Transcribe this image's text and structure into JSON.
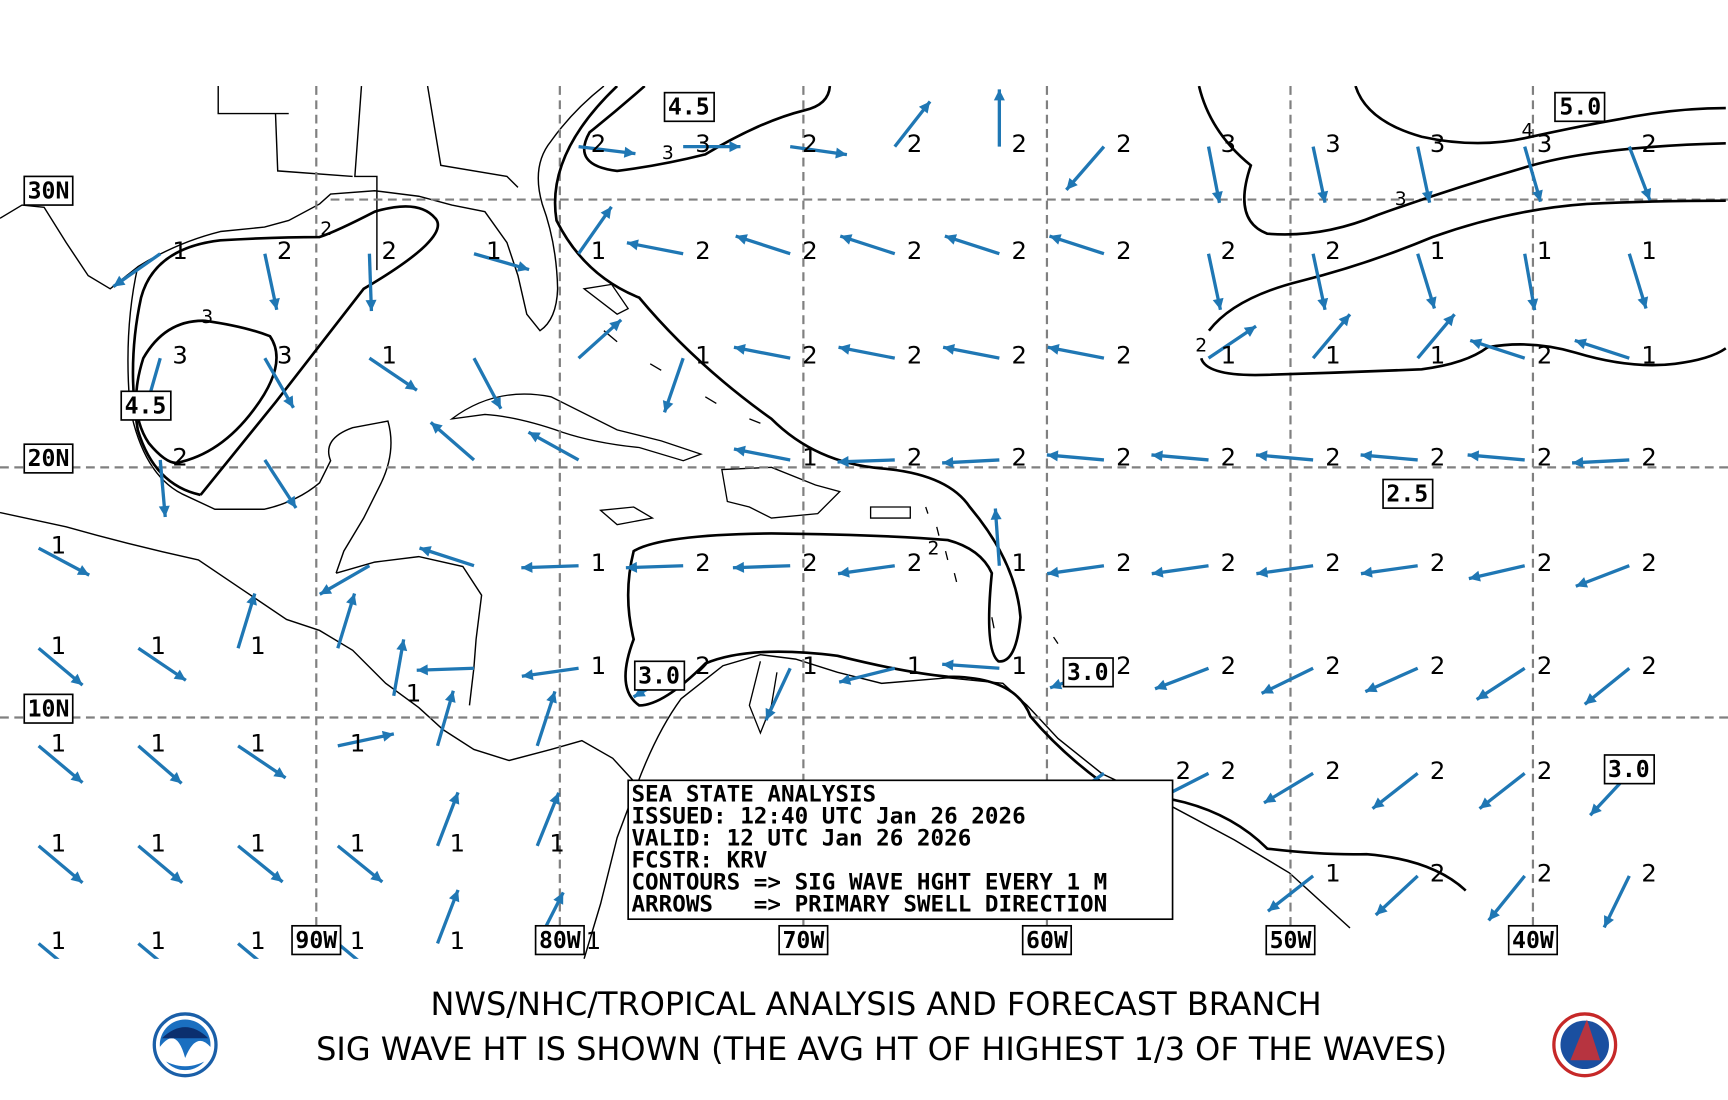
{
  "map": {
    "title": "SEA STATE ANALYSIS",
    "colors": {
      "arrow": "#1f77b4",
      "contour": "#000000",
      "grid": "#808080"
    },
    "lat_labels": [
      "30N",
      "20N",
      "10N"
    ],
    "lon_labels": [
      "90W",
      "80W",
      "70W",
      "60W",
      "50W",
      "40W"
    ],
    "contour_value_labels": [
      "3",
      "2",
      "3",
      "3",
      "4",
      "2",
      "2"
    ],
    "boxed_labels": [
      "4.5",
      "5.0",
      "4.5",
      "2.5",
      "3.0",
      "3.0",
      "3.0"
    ],
    "info_box": {
      "line1": "SEA STATE ANALYSIS",
      "line2": "ISSUED: 12:40 UTC Jan 26 2026",
      "line3": "VALID: 12 UTC Jan 26 2026",
      "line4": "FCSTR: KRV",
      "line5": "CONTOURS => SIG WAVE HGHT EVERY 1 M",
      "line6": "ARROWS   => PRIMARY SWELL DIRECTION"
    },
    "legend": {
      "contours": "significant wave height every 1 m",
      "arrows": "primary swell direction"
    }
  },
  "grid_points": [
    {
      "lat": 32.1,
      "points": [
        {
          "lon": -78.4,
          "v": "2",
          "dir": 97
        },
        {
          "lon": -74.1,
          "v": "3",
          "dir": 90
        },
        {
          "lon": -69.7,
          "v": "2",
          "dir": 98
        },
        {
          "lon": -65.4,
          "v": "2",
          "dir": 38
        },
        {
          "lon": -61.1,
          "v": "2",
          "dir": 0
        },
        {
          "lon": -56.8,
          "v": "2",
          "dir": 221
        },
        {
          "lon": -52.5,
          "v": "3",
          "dir": 169
        },
        {
          "lon": -48.2,
          "v": "3",
          "dir": 168
        },
        {
          "lon": -43.9,
          "v": "3",
          "dir": 168
        },
        {
          "lon": -39.5,
          "v": "3",
          "dir": 164
        },
        {
          "lon": -35.2,
          "v": "2",
          "dir": 159
        }
      ]
    },
    {
      "lat": 28.1,
      "points": [
        {
          "lon": -95.6,
          "v": "1",
          "dir": 235
        },
        {
          "lon": -91.3,
          "v": "2",
          "dir": 168
        },
        {
          "lon": -87.0,
          "v": "2",
          "dir": 178
        },
        {
          "lon": -82.7,
          "v": "1",
          "dir": 106
        },
        {
          "lon": -78.4,
          "v": "1",
          "dir": 35
        },
        {
          "lon": -74.1,
          "v": "2",
          "dir": 281
        },
        {
          "lon": -69.7,
          "v": "2",
          "dir": 288
        },
        {
          "lon": -65.4,
          "v": "2",
          "dir": 288
        },
        {
          "lon": -61.1,
          "v": "2",
          "dir": 288
        },
        {
          "lon": -56.8,
          "v": "2",
          "dir": 288
        },
        {
          "lon": -52.5,
          "v": "2",
          "dir": 168
        },
        {
          "lon": -48.2,
          "v": "2",
          "dir": 168
        },
        {
          "lon": -43.9,
          "v": "1",
          "dir": 163
        },
        {
          "lon": -39.5,
          "v": "1",
          "dir": 170
        },
        {
          "lon": -35.2,
          "v": "1",
          "dir": 163
        }
      ]
    },
    {
      "lat": 24.2,
      "points": [
        {
          "lon": -95.6,
          "v": "3",
          "dir": 196
        },
        {
          "lon": -91.3,
          "v": "3",
          "dir": 150
        },
        {
          "lon": -87.0,
          "v": "1",
          "dir": 124
        },
        {
          "lon": -82.7,
          "v": "",
          "dir": 152
        },
        {
          "lon": -78.4,
          "v": "",
          "dir": 48
        },
        {
          "lon": -74.1,
          "v": "1",
          "dir": 199
        },
        {
          "lon": -69.7,
          "v": "2",
          "dir": 281
        },
        {
          "lon": -65.4,
          "v": "2",
          "dir": 281
        },
        {
          "lon": -61.1,
          "v": "2",
          "dir": 281
        },
        {
          "lon": -56.8,
          "v": "2",
          "dir": 281
        },
        {
          "lon": -52.5,
          "v": "1",
          "dir": 56
        },
        {
          "lon": -48.2,
          "v": "1",
          "dir": 40
        },
        {
          "lon": -43.9,
          "v": "1",
          "dir": 40
        },
        {
          "lon": -39.5,
          "v": "2",
          "dir": 288
        },
        {
          "lon": -35.2,
          "v": "1",
          "dir": 288
        }
      ]
    },
    {
      "lat": 20.4,
      "points": [
        {
          "lon": -95.6,
          "v": "2",
          "dir": 175
        },
        {
          "lon": -91.3,
          "v": "",
          "dir": 147
        },
        {
          "lon": -82.7,
          "v": "",
          "dir": 311
        },
        {
          "lon": -78.4,
          "v": "",
          "dir": 299
        },
        {
          "lon": -69.7,
          "v": "1",
          "dir": 281
        },
        {
          "lon": -65.4,
          "v": "2",
          "dir": 268
        },
        {
          "lon": -61.1,
          "v": "2",
          "dir": 267
        },
        {
          "lon": -56.8,
          "v": "2",
          "dir": 275
        },
        {
          "lon": -52.5,
          "v": "2",
          "dir": 275
        },
        {
          "lon": -48.2,
          "v": "2",
          "dir": 275
        },
        {
          "lon": -43.9,
          "v": "2",
          "dir": 275
        },
        {
          "lon": -39.5,
          "v": "2",
          "dir": 275
        },
        {
          "lon": -35.2,
          "v": "2",
          "dir": 267
        }
      ]
    },
    {
      "lat": 16.2,
      "points": [
        {
          "lon": -87.0,
          "v": "",
          "dir": 240
        },
        {
          "lon": -82.7,
          "v": "",
          "dir": 288
        },
        {
          "lon": -78.4,
          "v": "1",
          "dir": 268
        },
        {
          "lon": -74.1,
          "v": "2",
          "dir": 268
        },
        {
          "lon": -69.7,
          "v": "2",
          "dir": 268
        },
        {
          "lon": -65.4,
          "v": "2",
          "dir": 262
        },
        {
          "lon": -61.1,
          "v": "1",
          "dir": 356
        },
        {
          "lon": -56.8,
          "v": "2",
          "dir": 262
        },
        {
          "lon": -52.5,
          "v": "2",
          "dir": 262
        },
        {
          "lon": -48.2,
          "v": "2",
          "dir": 262
        },
        {
          "lon": -43.9,
          "v": "2",
          "dir": 262
        },
        {
          "lon": -39.5,
          "v": "2",
          "dir": 257
        },
        {
          "lon": -35.2,
          "v": "2",
          "dir": 249
        }
      ]
    },
    {
      "lat": 12.1,
      "points": [
        {
          "lon": -82.7,
          "v": "",
          "dir": 268
        },
        {
          "lon": -78.4,
          "v": "1",
          "dir": 262
        },
        {
          "lon": -74.1,
          "v": "2",
          "dir": 240
        },
        {
          "lon": -69.7,
          "v": "1",
          "dir": 205
        },
        {
          "lon": -65.4,
          "v": "1",
          "dir": 256
        },
        {
          "lon": -61.1,
          "v": "1",
          "dir": 274
        },
        {
          "lon": -56.8,
          "v": "2",
          "dir": 250
        },
        {
          "lon": -52.5,
          "v": "2",
          "dir": 249
        },
        {
          "lon": -48.2,
          "v": "2",
          "dir": 244
        },
        {
          "lon": -43.9,
          "v": "2",
          "dir": 246
        },
        {
          "lon": -39.5,
          "v": "2",
          "dir": 237
        },
        {
          "lon": -35.2,
          "v": "2",
          "dir": 231
        }
      ]
    },
    {
      "lat": 7.9,
      "points": [
        {
          "lon": -56.8,
          "v": "2",
          "dir": 235
        },
        {
          "lon": -52.5,
          "v": "2",
          "dir": 243
        },
        {
          "lon": -48.2,
          "v": "2",
          "dir": 239
        },
        {
          "lon": -43.9,
          "v": "2",
          "dir": 232
        },
        {
          "lon": -39.5,
          "v": "2",
          "dir": 232
        },
        {
          "lon": -35.2,
          "v": "",
          "dir": 223
        }
      ]
    },
    {
      "lat": 3.8,
      "points": [
        {
          "lon": -48.2,
          "v": "1",
          "dir": 232
        },
        {
          "lon": -43.9,
          "v": "2",
          "dir": 227
        },
        {
          "lon": -39.5,
          "v": "2",
          "dir": 219
        },
        {
          "lon": -35.2,
          "v": "2",
          "dir": 206
        }
      ]
    },
    {
      "lat": 16.9,
      "points": [
        {
          "lon": -100.6,
          "v": "1",
          "dir": 118
        }
      ]
    },
    {
      "lat": 12.9,
      "points": [
        {
          "lon": -100.6,
          "v": "1",
          "dir": 130
        },
        {
          "lon": -96.5,
          "v": "1",
          "dir": 124
        },
        {
          "lon": -92.4,
          "v": "1",
          "dir": 17
        },
        {
          "lon": -88.3,
          "v": "",
          "dir": 17
        }
      ]
    },
    {
      "lat": 11.0,
      "points": [
        {
          "lon": -86.0,
          "v": "1",
          "dir": 10
        }
      ]
    },
    {
      "lat": 9.0,
      "points": [
        {
          "lon": -100.6,
          "v": "1",
          "dir": 130
        },
        {
          "lon": -96.5,
          "v": "1",
          "dir": 131
        },
        {
          "lon": -92.4,
          "v": "1",
          "dir": 124
        },
        {
          "lon": -88.3,
          "v": "1",
          "dir": 78
        },
        {
          "lon": -84.2,
          "v": "",
          "dir": 16
        },
        {
          "lon": -80.1,
          "v": "",
          "dir": 18
        }
      ]
    },
    {
      "lat": 5.0,
      "points": [
        {
          "lon": -100.6,
          "v": "1",
          "dir": 130
        },
        {
          "lon": -96.5,
          "v": "1",
          "dir": 130
        },
        {
          "lon": -92.4,
          "v": "1",
          "dir": 129
        },
        {
          "lon": -88.3,
          "v": "1",
          "dir": 129
        },
        {
          "lon": -84.2,
          "v": "1",
          "dir": 21
        },
        {
          "lon": -80.1,
          "v": "1",
          "dir": 22
        }
      ]
    },
    {
      "lat": 1.1,
      "points": [
        {
          "lon": -100.6,
          "v": "1",
          "dir": 130
        },
        {
          "lon": -96.5,
          "v": "1",
          "dir": 130
        },
        {
          "lon": -92.4,
          "v": "1",
          "dir": 130
        },
        {
          "lon": -88.3,
          "v": "1",
          "dir": 130
        },
        {
          "lon": -84.2,
          "v": "1",
          "dir": 21
        },
        {
          "lon": -80.1,
          "v": "1",
          "dir": 27
        }
      ]
    }
  ],
  "footer": {
    "line1": "NWS/NHC/TROPICAL ANALYSIS AND FORECAST BRANCH",
    "line2": "SIG WAVE HT IS SHOWN (THE AVG HT OF HIGHEST 1/3 OF THE WAVES)",
    "logo_left": "NOAA",
    "logo_right": "TAFB"
  }
}
